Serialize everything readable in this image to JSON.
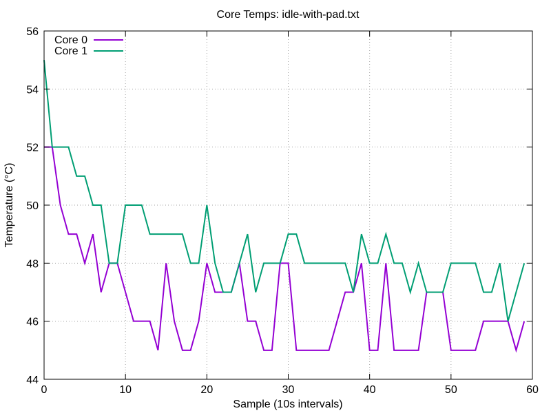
{
  "chart_data": {
    "type": "line",
    "title": "Core Temps: idle-with-pad.txt",
    "xlabel": "Sample (10s intervals)",
    "ylabel": "Temperature (°C)",
    "xlim": [
      0,
      60
    ],
    "ylim": [
      44,
      56
    ],
    "x_ticks": [
      0,
      10,
      20,
      30,
      40,
      50,
      60
    ],
    "y_ticks": [
      44,
      46,
      48,
      50,
      52,
      54,
      56
    ],
    "grid": true,
    "legend_position": "top-left",
    "x": [
      0,
      1,
      2,
      3,
      4,
      5,
      6,
      7,
      8,
      9,
      10,
      11,
      12,
      13,
      14,
      15,
      16,
      17,
      18,
      19,
      20,
      21,
      22,
      23,
      24,
      25,
      26,
      27,
      28,
      29,
      30,
      31,
      32,
      33,
      34,
      35,
      36,
      37,
      38,
      39,
      40,
      41,
      42,
      43,
      44,
      45,
      46,
      47,
      48,
      49,
      50,
      51,
      52,
      53,
      54,
      55,
      56,
      57,
      58,
      59
    ],
    "series": [
      {
        "name": "Core 0",
        "color": "#9400d3",
        "values": [
          52,
          52,
          50,
          49,
          49,
          48,
          49,
          47,
          48,
          48,
          47,
          46,
          46,
          46,
          45,
          48,
          46,
          45,
          45,
          46,
          48,
          47,
          47,
          47,
          48,
          46,
          46,
          45,
          45,
          48,
          48,
          45,
          45,
          45,
          45,
          45,
          46,
          47,
          47,
          48,
          45,
          45,
          48,
          45,
          45,
          45,
          45,
          47,
          47,
          47,
          45,
          45,
          45,
          45,
          46,
          46,
          46,
          46,
          45,
          46
        ]
      },
      {
        "name": "Core 1",
        "color": "#009e73",
        "values": [
          55,
          52,
          52,
          52,
          51,
          51,
          50,
          50,
          48,
          48,
          50,
          50,
          50,
          49,
          49,
          49,
          49,
          49,
          48,
          48,
          50,
          48,
          47,
          47,
          48,
          49,
          47,
          48,
          48,
          48,
          49,
          49,
          48,
          48,
          48,
          48,
          48,
          48,
          47,
          49,
          48,
          48,
          49,
          48,
          48,
          47,
          48,
          47,
          47,
          47,
          48,
          48,
          48,
          48,
          47,
          47,
          48,
          46,
          47,
          48
        ]
      }
    ]
  }
}
